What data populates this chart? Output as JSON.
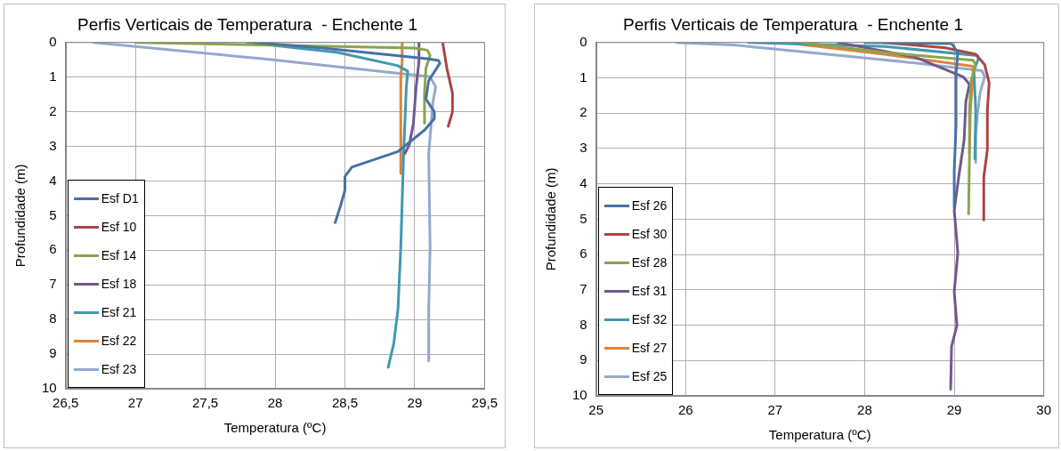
{
  "chart_data": [
    {
      "type": "line",
      "title": "Perfis Verticais de Temperatura  - Enchente 1",
      "xlabel": "Temperatura (ºC)",
      "ylabel": "Profundidade (m)",
      "xlim": [
        26.5,
        29.5
      ],
      "xticks": [
        {
          "value": 26.5,
          "label": "26,5"
        },
        27,
        {
          "value": 27.5,
          "label": "27,5"
        },
        28,
        {
          "value": 28.5,
          "label": "28,5"
        },
        29,
        {
          "value": 29.5,
          "label": "29,5"
        }
      ],
      "ylim": [
        10,
        0
      ],
      "yticks": [
        0,
        1,
        2,
        3,
        4,
        5,
        6,
        7,
        8,
        9,
        10
      ],
      "grid": true,
      "legend": "bottom left",
      "marker": "none",
      "line_style": "solid",
      "series": [
        {
          "name": "Esf D1",
          "color": "#4572a7",
          "x": [
            27.85,
            28.34,
            29.09,
            29.17,
            29.18,
            29.1,
            29.08,
            29.14,
            29.14,
            29.07,
            28.88,
            28.55,
            28.5,
            28.5,
            28.47,
            28.43
          ],
          "values": [
            0,
            0.16,
            0.47,
            0.52,
            0.6,
            1.1,
            1.63,
            2.0,
            2.2,
            2.53,
            3.15,
            3.6,
            3.87,
            4.27,
            4.7,
            5.2
          ]
        },
        {
          "name": "Esf 10",
          "color": "#aa4643",
          "x": [
            29.2,
            29.23,
            29.27,
            29.27,
            29.24
          ],
          "values": [
            0,
            0.74,
            1.46,
            2.0,
            2.42
          ]
        },
        {
          "name": "Esf 14",
          "color": "#89a54e",
          "x": [
            27.0,
            29.0,
            29.09,
            29.11,
            29.08,
            29.07,
            29.07
          ],
          "values": [
            0,
            0.16,
            0.22,
            0.38,
            0.74,
            1.46,
            2.33
          ]
        },
        {
          "name": "Esf 18",
          "color": "#71588f",
          "x": [
            29.03,
            29.03,
            29.01,
            28.99,
            28.96,
            28.93
          ],
          "values": [
            0,
            0.56,
            1.28,
            2.35,
            2.97,
            3.2
          ]
        },
        {
          "name": "Esf 21",
          "color": "#4198af",
          "x": [
            27.8,
            28.45,
            28.88,
            28.95,
            28.94,
            28.92,
            28.9,
            28.88,
            28.85,
            28.81
          ],
          "values": [
            0,
            0.29,
            0.67,
            0.83,
            1.28,
            3.24,
            5.92,
            7.7,
            8.69,
            9.38
          ]
        },
        {
          "name": "Esf 22",
          "color": "#db843d",
          "x": [
            28.91,
            28.91,
            28.9,
            28.9,
            28.9
          ],
          "values": [
            0,
            0.56,
            1.0,
            2.35,
            3.78
          ]
        },
        {
          "name": "Esf 23",
          "color": "#93a9cf",
          "x": [
            26.7,
            27.91,
            29.11,
            29.15,
            29.13,
            29.1,
            29.11,
            29.1,
            29.1
          ],
          "values": [
            0,
            0.47,
            0.99,
            1.28,
            1.72,
            3.24,
            5.92,
            7.7,
            9.2
          ]
        }
      ]
    },
    {
      "type": "line",
      "title": "Perfis Verticais de Temperatura  - Enchente 1",
      "xlabel": "Temperatura (ºC)",
      "ylabel": "Profundidade (m)",
      "xlim": [
        25,
        30
      ],
      "xticks": [
        25,
        26,
        27,
        28,
        29,
        30
      ],
      "ylim": [
        10,
        0
      ],
      "yticks": [
        0,
        1,
        2,
        3,
        4,
        5,
        6,
        7,
        8,
        9,
        10
      ],
      "grid": true,
      "legend": "bottom left",
      "marker": "none",
      "line_style": "solid",
      "series": [
        {
          "name": "Esf 26",
          "color": "#4572a7",
          "x": [
            28.0,
            28.97,
            29.04,
            29.02,
            29.02,
            29.0,
            29.0
          ],
          "values": [
            0,
            0.03,
            0.28,
            0.88,
            2.34,
            3.63,
            4.66
          ]
        },
        {
          "name": "Esf 30",
          "color": "#aa4643",
          "x": [
            28.2,
            28.9,
            29.24,
            29.34,
            29.39,
            29.37,
            29.37,
            29.33,
            29.33
          ],
          "values": [
            0,
            0.15,
            0.33,
            0.63,
            1.14,
            1.91,
            3.03,
            3.8,
            5.02
          ]
        },
        {
          "name": "Esf 28",
          "color": "#89a54e",
          "x": [
            27.3,
            28.22,
            29.21,
            29.24,
            29.19,
            29.17,
            29.17,
            29.16
          ],
          "values": [
            0,
            0.28,
            0.5,
            0.63,
            1.06,
            1.91,
            3.2,
            4.85
          ]
        },
        {
          "name": "Esf 31",
          "color": "#71588f",
          "x": [
            27.7,
            28.56,
            29.1,
            29.17,
            29.13,
            29.11,
            29.05,
            29.0,
            29.04,
            29.0,
            29.03,
            28.97,
            28.96
          ],
          "values": [
            0,
            0.41,
            0.97,
            1.18,
            1.66,
            2.77,
            3.8,
            4.75,
            5.95,
            7.06,
            8.0,
            8.6,
            9.81
          ]
        },
        {
          "name": "Esf 32",
          "color": "#4198af",
          "x": [
            26.7,
            28.22,
            29.26,
            29.27,
            29.22,
            29.24,
            29.23
          ],
          "values": [
            0,
            0.11,
            0.37,
            0.45,
            0.8,
            1.91,
            3.29
          ]
        },
        {
          "name": "Esf 27",
          "color": "#db843d",
          "x": [
            27.0,
            27.21,
            28.22,
            29.21,
            29.21,
            29.18,
            29.17
          ],
          "values": [
            0,
            0.03,
            0.33,
            0.67,
            0.97,
            1.91,
            3.12
          ]
        },
        {
          "name": "Esf 25",
          "color": "#93a9cf",
          "x": [
            25.9,
            26.53,
            28.56,
            29.31,
            29.34,
            29.29,
            29.26,
            29.24,
            29.24
          ],
          "values": [
            0,
            0.07,
            0.58,
            0.8,
            0.97,
            1.4,
            2.0,
            2.6,
            3.39
          ]
        }
      ]
    }
  ]
}
